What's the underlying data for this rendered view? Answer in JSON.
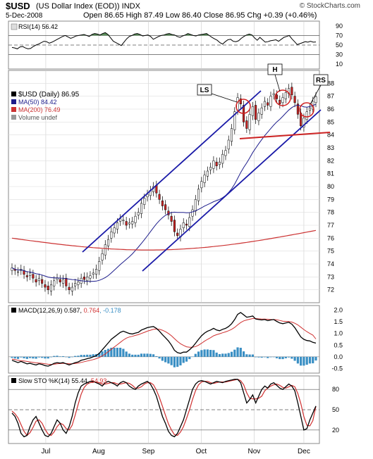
{
  "header": {
    "symbol": "$USD",
    "description": "(US Dollar Index (EOD)) INDX",
    "date": "5-Dec-2008",
    "ohlc_text": "Open 86.65 High 87.49 Low 86.40 Close 86.95 Chg +0.39 (+0.46%)",
    "copyright": "© StockCharts.com"
  },
  "chart_data": [
    {
      "type": "line",
      "panel": "RSI",
      "legend": "RSI(14) 56.42",
      "y_ticks": [
        10,
        30,
        50,
        70,
        90
      ],
      "ylim": [
        0,
        100
      ],
      "reference_lines": [
        30,
        50,
        70
      ],
      "values": [
        45,
        44,
        42,
        46,
        47,
        44,
        42,
        43,
        47,
        50,
        52,
        55,
        58,
        57,
        54,
        56,
        59,
        62,
        65,
        68,
        70,
        67,
        64,
        66,
        69,
        70,
        71,
        72,
        70,
        68,
        72,
        74,
        73,
        71,
        74,
        76,
        72,
        65,
        58,
        55,
        52,
        49,
        56,
        63,
        68,
        70,
        73,
        74,
        72,
        69,
        70,
        71,
        68,
        62,
        65,
        68,
        70,
        71,
        73,
        74,
        72,
        71,
        68,
        66,
        69,
        71,
        74,
        72,
        70,
        69,
        71,
        72,
        73,
        74,
        70,
        66,
        63,
        60,
        55,
        52,
        57,
        61,
        62,
        58,
        57,
        59,
        64,
        68,
        71,
        73,
        71,
        65,
        60,
        66,
        61,
        56,
        57,
        59,
        60,
        61,
        58,
        62,
        66,
        68,
        70,
        63,
        57,
        51,
        53,
        55,
        57,
        56,
        58,
        56,
        56.42
      ]
    },
    {
      "type": "candlestick",
      "panel": "price",
      "legend": [
        "$USD (Daily) 86.95",
        "MA(50) 84.42",
        "MA(200) 76.49",
        "Volume undef"
      ],
      "x_tick_labels": [
        "Jul",
        "Aug",
        "Sep",
        "Oct",
        "Nov",
        "Dec"
      ],
      "y_ticks": [
        72,
        73,
        74,
        75,
        76,
        77,
        78,
        79,
        80,
        81,
        82,
        83,
        84,
        85,
        86,
        87,
        88
      ],
      "ylim": [
        71,
        89
      ],
      "close": [
        73.7,
        73.5,
        73.4,
        73.6,
        73.2,
        73.0,
        73.3,
        72.9,
        72.6,
        72.9,
        72.5,
        72.2,
        72.0,
        72.4,
        72.7,
        72.9,
        72.6,
        72.8,
        72.3,
        72.0,
        72.2,
        72.5,
        72.6,
        72.9,
        72.8,
        73.0,
        73.1,
        73.3,
        73.6,
        74.2,
        74.8,
        75.5,
        75.9,
        76.5,
        76.8,
        77.2,
        77.5,
        77.4,
        77.0,
        77.2,
        77.3,
        77.7,
        78.0,
        78.7,
        79.1,
        79.4,
        79.7,
        80.0,
        79.5,
        79.0,
        78.5,
        78.2,
        77.8,
        77.3,
        76.5,
        76.2,
        76.7,
        77.2,
        77.0,
        77.6,
        78.2,
        79.0,
        79.8,
        80.4,
        80.9,
        81.2,
        81.5,
        82.0,
        81.6,
        81.9,
        82.5,
        82.8,
        83.6,
        84.5,
        85.8,
        86.9,
        86.4,
        85.0,
        84.5,
        85.6,
        86.2,
        85.2,
        85.7,
        86.1,
        86.6,
        86.3,
        87.0,
        87.2,
        86.8,
        86.4,
        86.9,
        87.3,
        87.6,
        87.1,
        86.5,
        85.6,
        84.7,
        85.3,
        85.8,
        86.1,
        86.6,
        86.95
      ],
      "overlays": [
        {
          "name": "MA(50)",
          "value": 84.42,
          "color": "#1d1d8c"
        },
        {
          "name": "MA(200)",
          "value": 76.49,
          "color": "#cc3333"
        }
      ],
      "annotations": [
        "LS",
        "H",
        "RS"
      ]
    },
    {
      "type": "line",
      "panel": "MACD",
      "legend_prefix": "MACD(12,26,9)",
      "legend_macd": "0.587",
      "legend_signal": "0.764",
      "legend_hist": "-0.178",
      "y_ticks": [
        2.0,
        1.5,
        1.0,
        0.5,
        0.0,
        -0.5
      ],
      "ylim": [
        -0.7,
        2.2
      ],
      "macd": [
        -0.15,
        -0.2,
        -0.25,
        -0.2,
        -0.25,
        -0.3,
        -0.28,
        -0.32,
        -0.35,
        -0.3,
        -0.33,
        -0.38,
        -0.4,
        -0.35,
        -0.28,
        -0.25,
        -0.27,
        -0.25,
        -0.3,
        -0.35,
        -0.3,
        -0.25,
        -0.22,
        -0.15,
        -0.12,
        -0.08,
        -0.05,
        0.0,
        0.05,
        0.15,
        0.3,
        0.45,
        0.6,
        0.75,
        0.85,
        0.95,
        1.05,
        1.1,
        1.05,
        1.0,
        0.98,
        1.02,
        1.05,
        1.15,
        1.2,
        1.25,
        1.28,
        1.3,
        1.22,
        1.1,
        0.95,
        0.82,
        0.68,
        0.5,
        0.28,
        0.18,
        0.15,
        0.2,
        0.2,
        0.3,
        0.42,
        0.58,
        0.75,
        0.9,
        1.02,
        1.1,
        1.15,
        1.22,
        1.15,
        1.12,
        1.18,
        1.22,
        1.3,
        1.42,
        1.6,
        1.82,
        1.9,
        1.8,
        1.7,
        1.72,
        1.75,
        1.62,
        1.6,
        1.58,
        1.6,
        1.55,
        1.58,
        1.6,
        1.52,
        1.45,
        1.42,
        1.45,
        1.48,
        1.4,
        1.25,
        1.05,
        0.85,
        0.75,
        0.7,
        0.68,
        0.62,
        0.587
      ],
      "signal": [
        -0.1,
        -0.12,
        -0.15,
        -0.17,
        -0.18,
        -0.2,
        -0.22,
        -0.24,
        -0.26,
        -0.27,
        -0.28,
        -0.3,
        -0.32,
        -0.33,
        -0.32,
        -0.3,
        -0.29,
        -0.28,
        -0.29,
        -0.3,
        -0.3,
        -0.29,
        -0.27,
        -0.24,
        -0.21,
        -0.18,
        -0.15,
        -0.12,
        -0.08,
        -0.03,
        0.04,
        0.12,
        0.22,
        0.32,
        0.42,
        0.52,
        0.62,
        0.72,
        0.8,
        0.85,
        0.88,
        0.92,
        0.95,
        1.0,
        1.05,
        1.1,
        1.14,
        1.18,
        1.19,
        1.18,
        1.14,
        1.08,
        1.0,
        0.9,
        0.78,
        0.66,
        0.56,
        0.49,
        0.43,
        0.41,
        0.41,
        0.44,
        0.5,
        0.58,
        0.67,
        0.75,
        0.82,
        0.9,
        0.95,
        0.99,
        1.03,
        1.07,
        1.12,
        1.18,
        1.26,
        1.37,
        1.47,
        1.54,
        1.58,
        1.61,
        1.64,
        1.64,
        1.63,
        1.62,
        1.62,
        1.61,
        1.6,
        1.6,
        1.59,
        1.56,
        1.53,
        1.52,
        1.51,
        1.49,
        1.44,
        1.37,
        1.27,
        1.17,
        1.08,
        1.0,
        0.93,
        0.764
      ]
    },
    {
      "type": "line",
      "panel": "Slow STO",
      "legend_prefix": "Slow STO %K(14)",
      "legend_k": "55.44",
      "legend_d": "54.93",
      "y_ticks": [
        80,
        50,
        20
      ],
      "ylim": [
        0,
        100
      ],
      "reference_lines": [
        20,
        50,
        80
      ],
      "k": [
        45,
        40,
        30,
        15,
        10,
        12,
        25,
        35,
        40,
        30,
        20,
        12,
        10,
        15,
        25,
        35,
        30,
        20,
        15,
        25,
        40,
        60,
        75,
        85,
        88,
        90,
        92,
        92,
        90,
        88,
        85,
        90,
        92,
        90,
        88,
        85,
        90,
        92,
        90,
        85,
        82,
        80,
        85,
        88,
        90,
        92,
        88,
        80,
        70,
        55,
        40,
        30,
        18,
        12,
        10,
        15,
        25,
        35,
        50,
        65,
        80,
        88,
        92,
        93,
        92,
        90,
        88,
        90,
        92,
        91,
        90,
        92,
        93,
        94,
        95,
        95,
        90,
        75,
        60,
        65,
        72,
        60,
        70,
        80,
        85,
        82,
        88,
        90,
        86,
        82,
        80,
        84,
        88,
        85,
        78,
        60,
        40,
        20,
        22,
        35,
        45,
        55.44
      ],
      "d": [
        48,
        44,
        38,
        28,
        18,
        12,
        16,
        24,
        33,
        35,
        30,
        21,
        14,
        12,
        17,
        25,
        30,
        28,
        22,
        20,
        27,
        42,
        58,
        73,
        83,
        88,
        90,
        91,
        91,
        90,
        88,
        88,
        89,
        90,
        90,
        88,
        88,
        89,
        90,
        89,
        86,
        82,
        82,
        84,
        88,
        90,
        90,
        87,
        79,
        68,
        55,
        42,
        29,
        20,
        13,
        12,
        17,
        25,
        37,
        50,
        65,
        78,
        87,
        91,
        92,
        92,
        90,
        89,
        90,
        91,
        91,
        91,
        92,
        93,
        94,
        95,
        93,
        87,
        75,
        67,
        66,
        66,
        67,
        70,
        78,
        82,
        85,
        87,
        88,
        86,
        83,
        82,
        84,
        86,
        84,
        74,
        59,
        40,
        27,
        26,
        34,
        54.93
      ]
    }
  ]
}
